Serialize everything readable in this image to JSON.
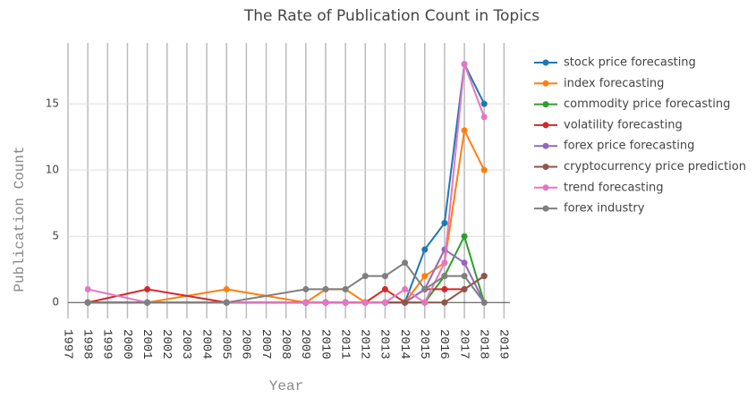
{
  "chart_data": {
    "type": "line",
    "title": "The Rate of Publication Count in Topics",
    "x_label": "Year",
    "y_label": "Publication Count",
    "x": [
      1998,
      2001,
      2005,
      2009,
      2010,
      2011,
      2012,
      2013,
      2014,
      2015,
      2016,
      2017,
      2018
    ],
    "series": [
      {
        "name": "stock price forecasting",
        "color": "#1f77b4",
        "values": [
          0,
          0,
          0,
          0,
          0,
          0,
          0,
          0,
          0,
          4,
          6,
          18,
          15
        ]
      },
      {
        "name": "index forecasting",
        "color": "#ff7f0e",
        "values": [
          0,
          0,
          1,
          0,
          1,
          1,
          0,
          0,
          0,
          2,
          3,
          13,
          10
        ]
      },
      {
        "name": "commodity price forecasting",
        "color": "#2ca02c",
        "values": [
          0,
          0,
          0,
          0,
          0,
          0,
          0,
          0,
          0,
          0,
          2,
          5,
          0
        ]
      },
      {
        "name": "volatility forecasting",
        "color": "#d62728",
        "values": [
          0,
          1,
          0,
          0,
          0,
          0,
          0,
          1,
          0,
          1,
          1,
          1,
          2
        ]
      },
      {
        "name": "forex price forecasting",
        "color": "#9467bd",
        "values": [
          0,
          0,
          0,
          0,
          0,
          0,
          0,
          0,
          0,
          1,
          4,
          3,
          0
        ]
      },
      {
        "name": "cryptocurrency price prediction",
        "color": "#8c564b",
        "values": [
          0,
          0,
          0,
          0,
          0,
          0,
          0,
          0,
          0,
          0,
          0,
          1,
          2
        ]
      },
      {
        "name": "trend forecasting",
        "color": "#e377c2",
        "values": [
          1,
          0,
          0,
          0,
          0,
          0,
          0,
          0,
          1,
          0,
          3,
          18,
          14
        ]
      },
      {
        "name": "forex industry",
        "color": "#7f7f7f",
        "values": [
          0,
          0,
          0,
          1,
          1,
          1,
          2,
          2,
          3,
          1,
          2,
          2,
          0
        ]
      }
    ],
    "xlim": [
      1997,
      2019.3
    ],
    "xticks": [
      1997,
      1998,
      1999,
      2000,
      2001,
      2002,
      2003,
      2004,
      2005,
      2006,
      2007,
      2008,
      2009,
      2010,
      2011,
      2012,
      2013,
      2014,
      2015,
      2016,
      2017,
      2018,
      2019
    ],
    "ylim": [
      -1.2,
      19.6
    ],
    "yticks": [
      0,
      5,
      10,
      15
    ],
    "grid": true,
    "legend": "right"
  }
}
